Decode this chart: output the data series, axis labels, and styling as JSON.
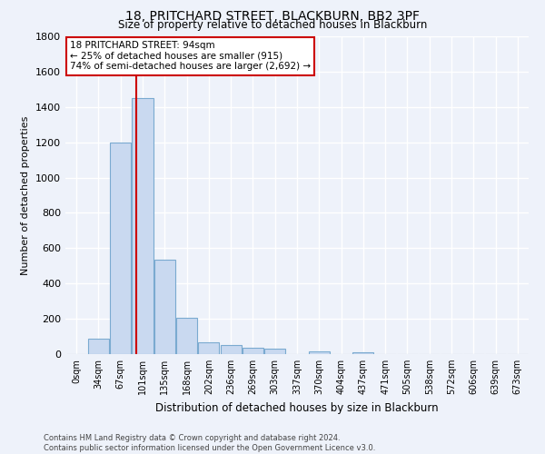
{
  "title": "18, PRITCHARD STREET, BLACKBURN, BB2 3PF",
  "subtitle": "Size of property relative to detached houses in Blackburn",
  "xlabel": "Distribution of detached houses by size in Blackburn",
  "ylabel": "Number of detached properties",
  "bar_labels": [
    "0sqm",
    "34sqm",
    "67sqm",
    "101sqm",
    "135sqm",
    "168sqm",
    "202sqm",
    "236sqm",
    "269sqm",
    "303sqm",
    "337sqm",
    "370sqm",
    "404sqm",
    "437sqm",
    "471sqm",
    "505sqm",
    "538sqm",
    "572sqm",
    "606sqm",
    "639sqm",
    "673sqm"
  ],
  "bar_values": [
    0,
    90,
    1200,
    1450,
    535,
    205,
    65,
    50,
    38,
    30,
    0,
    15,
    0,
    10,
    0,
    0,
    0,
    0,
    0,
    0,
    0
  ],
  "bar_color": "#c9d9f0",
  "bar_edge_color": "#7aaad0",
  "ylim": [
    0,
    1800
  ],
  "yticks": [
    0,
    200,
    400,
    600,
    800,
    1000,
    1200,
    1400,
    1600,
    1800
  ],
  "vline_x": 2.72,
  "property_line_label": "18 PRITCHARD STREET: 94sqm",
  "annotation_line1": "← 25% of detached houses are smaller (915)",
  "annotation_line2": "74% of semi-detached houses are larger (2,692) →",
  "vline_color": "#cc0000",
  "annotation_box_edge_color": "#cc0000",
  "background_color": "#eef2fa",
  "grid_color": "#ffffff",
  "footer_line1": "Contains HM Land Registry data © Crown copyright and database right 2024.",
  "footer_line2": "Contains public sector information licensed under the Open Government Licence v3.0."
}
